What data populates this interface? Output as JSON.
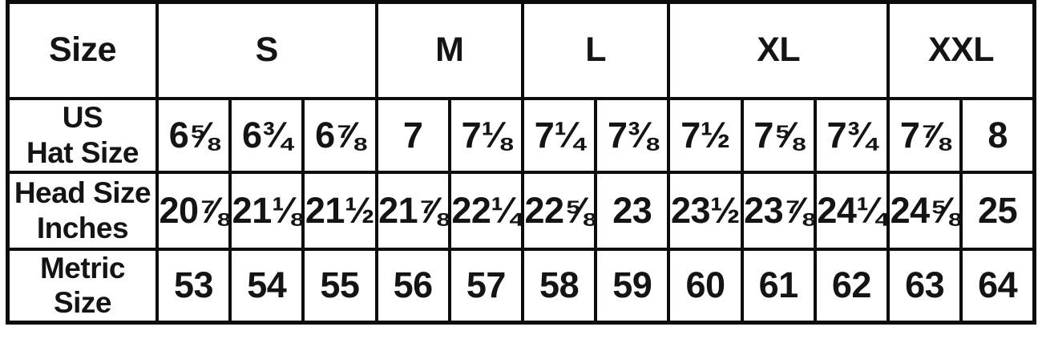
{
  "colors": {
    "background": "#ffffff",
    "border": "#0d0d0d",
    "text": "#141414"
  },
  "chart_data": {
    "type": "table",
    "corner_label": "Size",
    "size_groups": [
      {
        "label": "S",
        "span": 3
      },
      {
        "label": "M",
        "span": 2
      },
      {
        "label": "L",
        "span": 2
      },
      {
        "label": "XL",
        "span": 3
      },
      {
        "label": "XXL",
        "span": 2
      }
    ],
    "rows": [
      {
        "label": "US\nHat Size",
        "values": [
          "6⅝",
          "6¾",
          "6⅞",
          "7",
          "7⅛",
          "7¼",
          "7⅜",
          "7½",
          "7⅝",
          "7¾",
          "7⅞",
          "8"
        ]
      },
      {
        "label": "Head Size\nInches",
        "values": [
          "20⅞",
          "21⅛",
          "21½",
          "21⅞",
          "22¼",
          "22⅝",
          "23",
          "23½",
          "23⅞",
          "24¼",
          "24⅝",
          "25"
        ]
      },
      {
        "label": "Metric\nSize",
        "values": [
          "53",
          "54",
          "55",
          "56",
          "57",
          "58",
          "59",
          "60",
          "61",
          "62",
          "63",
          "64"
        ]
      }
    ]
  }
}
